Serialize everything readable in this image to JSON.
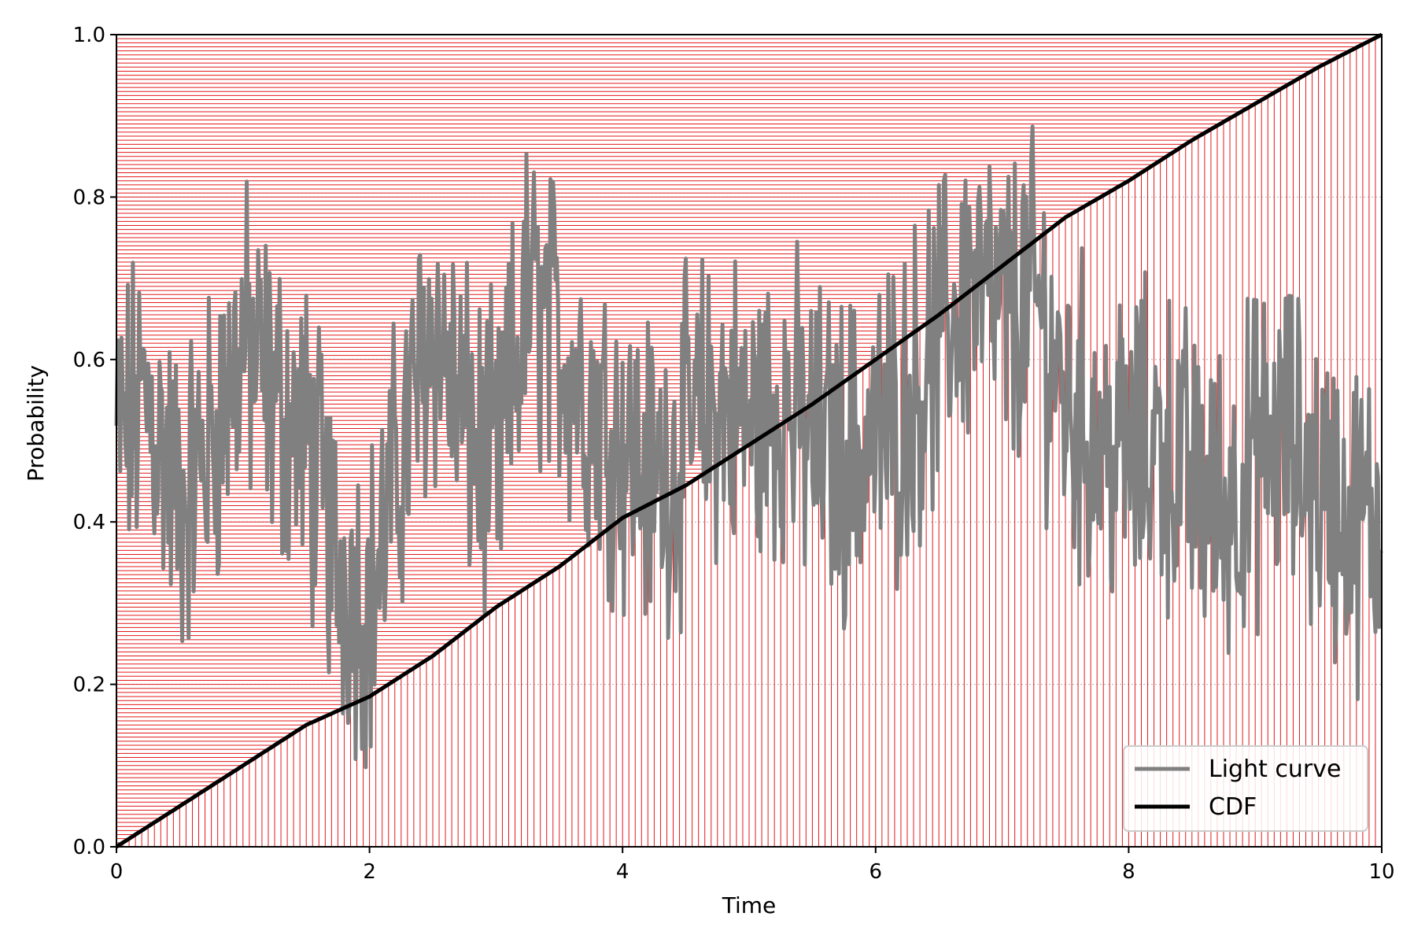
{
  "chart_data": {
    "type": "line",
    "title": "",
    "xlabel": "Time",
    "ylabel": "Probability",
    "xlim": [
      0,
      10
    ],
    "ylim": [
      0,
      1
    ],
    "xticks": [
      0,
      2,
      4,
      6,
      8,
      10
    ],
    "xtick_labels": [
      "0",
      "2",
      "4",
      "6",
      "8",
      "10"
    ],
    "yticks": [
      0,
      0.2,
      0.4,
      0.6,
      0.8,
      1.0
    ],
    "ytick_labels": [
      "0.0",
      "0.2",
      "0.4",
      "0.6",
      "0.8",
      "1.0"
    ],
    "grid": true,
    "legend_placement": "lower-right",
    "colors": {
      "light_curve": "#808080",
      "cdf": "#000000",
      "sampling_lines": "#e41a1c",
      "grid": "#b0b0b0"
    },
    "series": [
      {
        "name": "Light curve",
        "x": [
          0.0,
          0.25,
          0.5,
          0.75,
          1.0,
          1.25,
          1.5,
          1.75,
          2.0,
          2.25,
          2.5,
          2.75,
          3.0,
          3.25,
          3.5,
          3.75,
          4.0,
          4.25,
          4.5,
          4.75,
          5.0,
          5.25,
          5.5,
          5.75,
          6.0,
          6.25,
          6.5,
          6.75,
          7.0,
          7.25,
          7.5,
          7.75,
          8.0,
          8.25,
          8.5,
          8.75,
          9.0,
          9.25,
          9.5,
          9.75,
          10.0
        ],
        "y": [
          0.5,
          0.55,
          0.42,
          0.5,
          0.62,
          0.55,
          0.5,
          0.35,
          0.3,
          0.48,
          0.65,
          0.52,
          0.45,
          0.68,
          0.62,
          0.55,
          0.5,
          0.45,
          0.5,
          0.55,
          0.52,
          0.55,
          0.5,
          0.48,
          0.5,
          0.55,
          0.62,
          0.7,
          0.65,
          0.68,
          0.55,
          0.5,
          0.48,
          0.5,
          0.45,
          0.42,
          0.48,
          0.5,
          0.45,
          0.4,
          0.4
        ]
      },
      {
        "name": "CDF",
        "x": [
          0.0,
          0.5,
          1.0,
          1.5,
          2.0,
          2.5,
          3.0,
          3.5,
          4.0,
          4.5,
          5.0,
          5.5,
          6.0,
          6.5,
          7.0,
          7.5,
          8.0,
          8.5,
          9.0,
          9.5,
          10.0
        ],
        "y": [
          0.0,
          0.05,
          0.1,
          0.15,
          0.185,
          0.235,
          0.295,
          0.345,
          0.405,
          0.445,
          0.495,
          0.545,
          0.6,
          0.655,
          0.715,
          0.775,
          0.82,
          0.87,
          0.915,
          0.96,
          1.0
        ]
      }
    ],
    "sampling_count": 200
  }
}
